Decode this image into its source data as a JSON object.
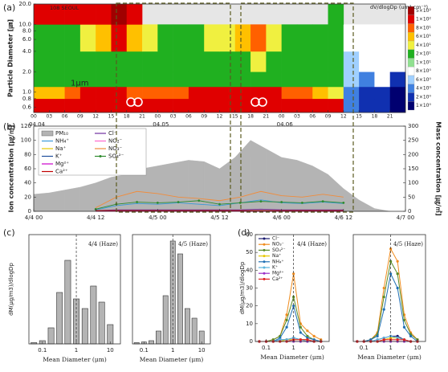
{
  "chart_data": [
    {
      "type": "heatmap",
      "panel_label": "(a)",
      "title": "108 SEOUL",
      "colorbar_title": "dV/dlogDp (um³ cm⁻³)",
      "ylabel": "Particle Diameter [㎛]",
      "annotation": "1μm",
      "ylog": true,
      "xlim": [
        0,
        72
      ],
      "ylim": [
        0.5,
        20
      ],
      "xticks": [
        {
          "value": 0,
          "label": "00"
        },
        {
          "value": 3,
          "label": "03"
        },
        {
          "value": 6,
          "label": "06"
        },
        {
          "value": 9,
          "label": "09"
        },
        {
          "value": 12,
          "label": "12"
        },
        {
          "value": 15,
          "label": "15"
        },
        {
          "value": 18,
          "label": "18"
        },
        {
          "value": 21,
          "label": "21"
        },
        {
          "value": 24,
          "label": "00"
        },
        {
          "value": 27,
          "label": "03"
        },
        {
          "value": 30,
          "label": "06"
        },
        {
          "value": 33,
          "label": "09"
        },
        {
          "value": 36,
          "label": "12"
        },
        {
          "value": 39,
          "label": "15"
        },
        {
          "value": 42,
          "label": "18"
        },
        {
          "value": 45,
          "label": "21"
        },
        {
          "value": 48,
          "label": "00"
        },
        {
          "value": 51,
          "label": "03"
        },
        {
          "value": 54,
          "label": "06"
        },
        {
          "value": 57,
          "label": "09"
        },
        {
          "value": 60,
          "label": "12"
        },
        {
          "value": 63,
          "label": "15"
        },
        {
          "value": 66,
          "label": "18"
        },
        {
          "value": 69,
          "label": "21"
        }
      ],
      "date_labels": [
        {
          "value": 0,
          "label": "04.04"
        },
        {
          "value": 24,
          "label": "04.05"
        },
        {
          "value": 48,
          "label": "04.06"
        }
      ],
      "yticks": [
        0.6,
        0.8,
        {
          "value": 1,
          "label": "1.0"
        },
        {
          "value": 2,
          "label": "2.0"
        },
        {
          "value": 4,
          "label": "4.0"
        },
        {
          "value": 6,
          "label": "6.0"
        },
        {
          "value": 8,
          "label": "8.0"
        },
        {
          "value": 10,
          "label": "10.0"
        },
        {
          "value": 20,
          "label": "20.0"
        }
      ],
      "x": [
        0,
        3,
        6,
        9,
        12,
        15,
        18,
        21,
        24,
        27,
        30,
        33,
        36,
        39,
        42,
        45,
        48,
        51,
        54,
        57,
        60,
        63,
        66,
        69
      ],
      "y_edges": [
        0.5,
        0.8,
        1.2,
        2,
        4,
        10,
        20
      ],
      "values": [
        [
          300,
          300,
          350,
          400,
          400,
          450,
          450,
          400,
          400,
          400,
          450,
          450,
          450,
          450,
          450,
          450,
          450,
          400,
          400,
          300,
          5,
          3,
          2,
          1
        ],
        [
          60,
          60,
          80,
          100,
          100,
          100,
          80,
          80,
          80,
          80,
          100,
          100,
          100,
          150,
          150,
          100,
          80,
          80,
          60,
          40,
          5,
          3,
          2,
          1
        ],
        [
          25,
          25,
          25,
          30,
          30,
          30,
          25,
          25,
          25,
          25,
          25,
          30,
          30,
          30,
          30,
          30,
          25,
          25,
          25,
          20,
          6,
          4,
          8,
          2
        ],
        [
          30,
          30,
          30,
          35,
          35,
          35,
          30,
          30,
          30,
          30,
          30,
          35,
          35,
          35,
          40,
          35,
          30,
          30,
          30,
          25,
          6,
          8,
          9,
          8
        ],
        [
          30,
          30,
          35,
          40,
          60,
          100,
          60,
          40,
          35,
          35,
          35,
          40,
          40,
          60,
          80,
          40,
          35,
          35,
          30,
          25,
          8,
          9,
          9,
          9
        ],
        [
          100,
          150,
          200,
          300,
          400,
          500,
          300,
          null,
          null,
          null,
          null,
          null,
          null,
          null,
          null,
          null,
          null,
          null,
          null,
          20,
          null,
          null,
          null,
          null
        ]
      ],
      "colorbar": [
        {
          "value": 500,
          "label": "5×10²"
        },
        {
          "value": 100,
          "label": "1×10²"
        },
        {
          "value": 80,
          "label": "8×10¹"
        },
        {
          "value": 60,
          "label": "6×10¹"
        },
        {
          "value": 40,
          "label": "4×10¹"
        },
        {
          "value": 20,
          "label": "2×10¹"
        },
        {
          "value": 10,
          "label": "1×10¹"
        },
        {
          "value": 8,
          "label": "8×10⁰"
        },
        {
          "value": 6,
          "label": "6×10⁰"
        },
        {
          "value": 4,
          "label": "4×10⁰"
        },
        {
          "value": 2,
          "label": "2×10⁰"
        },
        {
          "value": 1,
          "label": "1×10⁰"
        }
      ],
      "colors": [
        "#a00000",
        "#e00000",
        "#ff6000",
        "#ffc000",
        "#f0f040",
        "#20b020",
        "#90e090",
        "#ffffff",
        "#a0d0ff",
        "#4080e0",
        "#1030b0",
        "#000070"
      ]
    },
    {
      "type": "line",
      "panel_label": "(b)",
      "ylabel": "Ion concentration [㎍/㎥]",
      "y2label": "Mass concentration [㎍/㎥]",
      "xlim": [
        0,
        72
      ],
      "ylim": [
        0,
        120
      ],
      "yticks": [
        0,
        20,
        40,
        60,
        80,
        100,
        120
      ],
      "y2lim": [
        0,
        300
      ],
      "y2ticks": [
        0,
        50,
        100,
        150,
        200,
        250,
        300
      ],
      "xticks": [
        {
          "value": 0,
          "label": "4/4 00"
        },
        {
          "value": 12,
          "label": "4/4 12"
        },
        {
          "value": 24,
          "label": "4/5 00"
        },
        {
          "value": 36,
          "label": "4/5 12"
        },
        {
          "value": 48,
          "label": "4/6 00"
        },
        {
          "value": 60,
          "label": "4/6 12"
        },
        {
          "value": 72,
          "label": "4/7 00"
        }
      ],
      "series": [
        {
          "name": "PM₁₀",
          "color": "#b4b4b4",
          "area": true,
          "axis": "y2",
          "x": [
            0,
            3,
            6,
            9,
            12,
            15,
            18,
            21,
            24,
            27,
            30,
            33,
            36,
            39,
            42,
            45,
            48,
            51,
            54,
            57,
            60,
            63,
            66,
            69
          ],
          "values": [
            60,
            65,
            75,
            85,
            100,
            120,
            130,
            150,
            160,
            170,
            180,
            175,
            150,
            190,
            250,
            220,
            190,
            180,
            160,
            130,
            80,
            40,
            10,
            0
          ]
        },
        {
          "name": "Cl⁻",
          "color": "#7030a0",
          "x": [
            12,
            16,
            20,
            24,
            28,
            32,
            36,
            40,
            44,
            48,
            52,
            56,
            60
          ],
          "values": [
            1,
            2,
            2,
            2,
            2,
            2,
            2,
            2,
            3,
            2,
            2,
            2,
            2
          ]
        },
        {
          "name": "NH₄⁺",
          "color": "#3a9ad9",
          "x": [
            12,
            16,
            20,
            24,
            28,
            32,
            36,
            40,
            44,
            48,
            52,
            56,
            60
          ],
          "values": [
            2,
            8,
            11,
            10,
            12,
            10,
            8,
            12,
            16,
            12,
            11,
            13,
            11
          ]
        },
        {
          "name": "NO₂⁻",
          "color": "#ff66cc",
          "x": [
            12,
            16,
            20,
            24,
            28,
            32,
            36,
            40,
            44,
            48,
            52,
            56,
            60
          ],
          "values": [
            0,
            1,
            1,
            1,
            1,
            1,
            1,
            1,
            1,
            1,
            1,
            1,
            1
          ]
        },
        {
          "name": "Na⁺",
          "color": "#e6c800",
          "x": [
            12,
            16,
            20,
            24,
            28,
            32,
            36,
            40,
            44,
            48,
            52,
            56,
            60
          ],
          "values": [
            1,
            1,
            1,
            1,
            1,
            1,
            1,
            1,
            1,
            1,
            1,
            1,
            1
          ]
        },
        {
          "name": "NO₃⁻",
          "color": "#f08c3c",
          "x": [
            12,
            16,
            20,
            24,
            28,
            32,
            36,
            40,
            44,
            48,
            52,
            56,
            60
          ],
          "values": [
            5,
            20,
            28,
            25,
            20,
            18,
            15,
            20,
            28,
            22,
            20,
            24,
            20
          ]
        },
        {
          "name": "K⁺",
          "color": "#1f4e9c",
          "x": [
            12,
            16,
            20,
            24,
            28,
            32,
            36,
            40,
            44,
            48,
            52,
            56,
            60
          ],
          "values": [
            1,
            1,
            1,
            1,
            1,
            1,
            1,
            1,
            1,
            1,
            1,
            1,
            1
          ]
        },
        {
          "name": "SO₄²⁻",
          "color": "#2e8b2e",
          "markers": true,
          "x": [
            12,
            16,
            20,
            24,
            28,
            32,
            36,
            40,
            44,
            48,
            52,
            56,
            60
          ],
          "values": [
            3,
            10,
            13,
            12,
            13,
            15,
            10,
            12,
            14,
            13,
            12,
            14,
            12
          ]
        },
        {
          "name": "Mg²⁺",
          "color": "#cc00cc",
          "x": [
            12,
            16,
            20,
            24,
            28,
            32,
            36,
            40,
            44,
            48,
            52,
            56,
            60
          ],
          "values": [
            0,
            0,
            0,
            0,
            0,
            0,
            0,
            0,
            0,
            0,
            0,
            0,
            0
          ]
        },
        {
          "name": "Ca²⁺",
          "color": "#c00000",
          "x": [
            12,
            16,
            20,
            24,
            28,
            32,
            36,
            40,
            44,
            48,
            52,
            56,
            60
          ],
          "values": [
            1,
            1,
            1,
            1,
            1,
            1,
            1,
            1,
            1,
            1,
            1,
            1,
            1
          ]
        }
      ]
    },
    {
      "type": "bar",
      "panel_label": "(c)",
      "title": "4/4 (Haze)",
      "xlabel": "Mean Diameter (μm)",
      "ylabel": "dM(μg/m3)/dlogDp",
      "xlog": true,
      "xlim": [
        0.04,
        20
      ],
      "xticks": [
        0.1,
        1,
        10
      ],
      "ylim": [
        0,
        170
      ],
      "vline": 1,
      "color": "#b4b4b4",
      "x": [
        0.056,
        0.1,
        0.18,
        0.32,
        0.56,
        1,
        1.8,
        3.2,
        5.6,
        10
      ],
      "values": [
        2,
        5,
        25,
        80,
        130,
        70,
        55,
        90,
        65,
        30
      ]
    },
    {
      "type": "bar",
      "title": "4/5 (Haze)",
      "xlabel": "Mean Diameter (μm)",
      "xlog": true,
      "xlim": [
        0.04,
        20
      ],
      "xticks": [
        0.1,
        1,
        10
      ],
      "ylim": [
        0,
        170
      ],
      "vline": 1,
      "color": "#b4b4b4",
      "x": [
        0.056,
        0.1,
        0.18,
        0.32,
        0.56,
        1,
        1.8,
        3.2,
        5.6,
        10
      ],
      "values": [
        2,
        3,
        5,
        20,
        75,
        160,
        140,
        55,
        40,
        20
      ]
    },
    {
      "type": "line",
      "panel_label": "(d)",
      "title": "4/4 (Haze)",
      "xlabel": "Mean Diameter (μm)",
      "ylabel": "dM(μg/m3)/dlogDp",
      "xlog": true,
      "xlim": [
        0.04,
        20
      ],
      "xticks": [
        0.1,
        1,
        10
      ],
      "ylim": [
        0,
        60
      ],
      "yticks": [
        0,
        10,
        20,
        30,
        40,
        50,
        60
      ],
      "vline": 1,
      "markers": true,
      "x": [
        0.056,
        0.1,
        0.18,
        0.32,
        0.56,
        1,
        1.8,
        3.2,
        5.6,
        10
      ],
      "series": [
        {
          "name": "Cl⁻",
          "color": "#1a1a6e",
          "values": [
            0,
            0,
            0,
            1,
            1,
            2,
            1,
            1,
            0,
            0
          ]
        },
        {
          "name": "NO₃⁻",
          "color": "#f08c1e",
          "values": [
            0,
            0,
            1,
            3,
            15,
            38,
            10,
            6,
            3,
            1
          ]
        },
        {
          "name": "SO₄²⁻",
          "color": "#5a8c28",
          "values": [
            0,
            0,
            1,
            3,
            12,
            25,
            8,
            3,
            1,
            0
          ]
        },
        {
          "name": "Na⁺",
          "color": "#e6c800",
          "values": [
            0,
            0,
            0,
            0,
            1,
            1,
            1,
            1,
            0,
            0
          ]
        },
        {
          "name": "NH₄⁺",
          "color": "#1f6fb4",
          "values": [
            0,
            0,
            0,
            2,
            8,
            20,
            5,
            2,
            1,
            0
          ]
        },
        {
          "name": "K⁺",
          "color": "#5ab4dc",
          "values": [
            0,
            0,
            0,
            1,
            1,
            2,
            1,
            0,
            0,
            0
          ]
        },
        {
          "name": "Mg²⁺",
          "color": "#9b30c8",
          "values": [
            0,
            0,
            0,
            0,
            0,
            0,
            0,
            0,
            0,
            0
          ]
        },
        {
          "name": "Ca²⁺",
          "color": "#e02020",
          "values": [
            0,
            0,
            0,
            0,
            0,
            1,
            1,
            1,
            0,
            0
          ]
        }
      ]
    },
    {
      "type": "line",
      "title": "4/5 (Haze)",
      "xlabel": "Mean Diameter (μm)",
      "xlog": true,
      "xlim": [
        0.04,
        20
      ],
      "xticks": [
        0.1,
        1,
        10
      ],
      "ylim": [
        0,
        60
      ],
      "vline": 1,
      "markers": true,
      "x": [
        0.056,
        0.1,
        0.18,
        0.32,
        0.56,
        1,
        1.8,
        3.2,
        5.6,
        10
      ],
      "series": [
        {
          "color": "#1a1a6e",
          "values": [
            0,
            0,
            0,
            1,
            2,
            3,
            3,
            1,
            0,
            0
          ]
        },
        {
          "color": "#f08c1e",
          "values": [
            0,
            0,
            1,
            5,
            30,
            52,
            45,
            15,
            5,
            1
          ]
        },
        {
          "color": "#5a8c28",
          "values": [
            0,
            0,
            1,
            4,
            25,
            45,
            38,
            12,
            4,
            1
          ]
        },
        {
          "color": "#e6c800",
          "values": [
            0,
            0,
            0,
            0,
            1,
            2,
            2,
            1,
            0,
            0
          ]
        },
        {
          "color": "#1f6fb4",
          "values": [
            0,
            0,
            1,
            3,
            18,
            38,
            30,
            8,
            3,
            0
          ]
        },
        {
          "color": "#5ab4dc",
          "values": [
            0,
            0,
            0,
            1,
            2,
            3,
            2,
            1,
            0,
            0
          ]
        },
        {
          "color": "#9b30c8",
          "values": [
            0,
            0,
            0,
            0,
            0,
            0,
            0,
            0,
            0,
            0
          ]
        },
        {
          "color": "#e02020",
          "values": [
            0,
            0,
            0,
            0,
            1,
            1,
            1,
            1,
            0,
            0
          ]
        }
      ]
    }
  ]
}
